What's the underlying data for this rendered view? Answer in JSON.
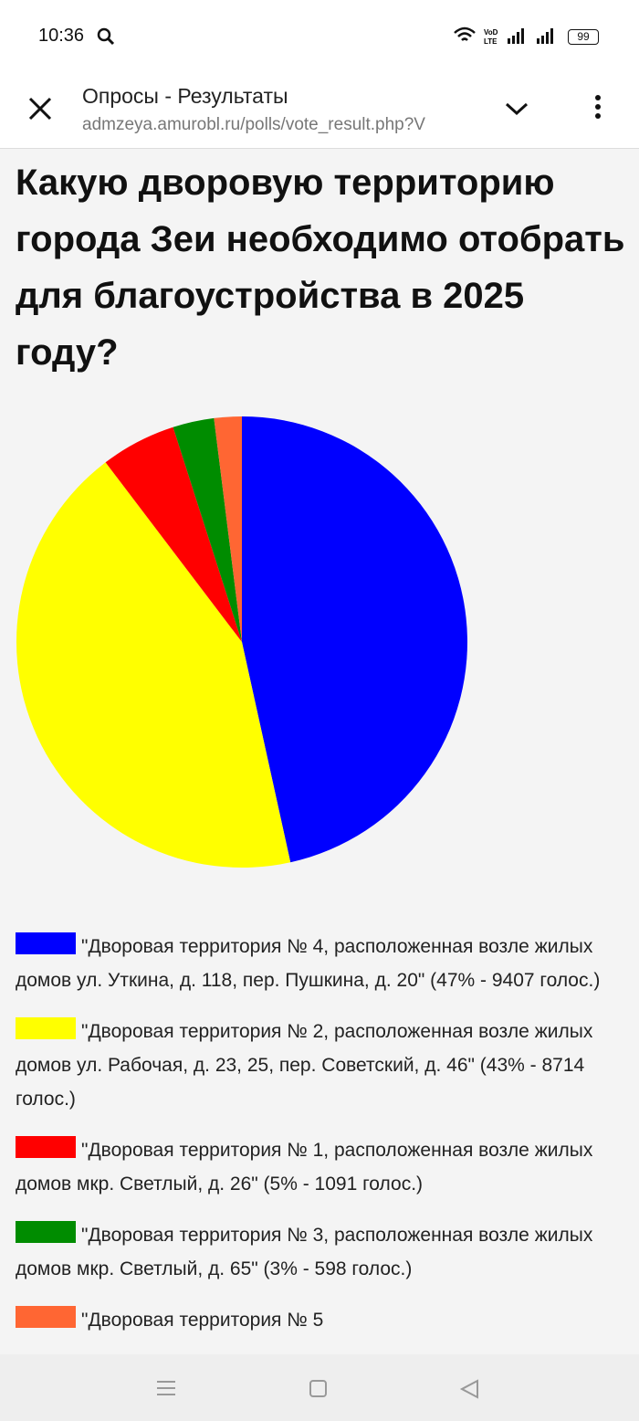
{
  "status_bar": {
    "time": "10:36",
    "battery": "99"
  },
  "browser": {
    "title": "Опросы - Результаты",
    "url": "admzeya.amurobl.ru/polls/vote_result.php?V"
  },
  "chart_data": {
    "type": "pie",
    "title": "Какую дворовую территорию города Зеи необходимо отобрать для благоустройства в 2025 году?",
    "categories": [
      "\"Дворовая территория № 4, расположенная возле жилых домов ул. Уткина, д. 118, пер. Пушкина, д. 20\" (47% - 9407 голос.)",
      "\"Дворовая территория № 2, расположенная возле жилых домов ул. Рабочая, д. 23, 25, пер. Советский, д. 46\" (43% - 8714 голос.)",
      "\"Дворовая территория № 1, расположенная возле жилых домов мкр. Светлый, д. 26\" (5% - 1091 голос.)",
      "\"Дворовая территория № 3, расположенная возле жилых домов мкр. Светлый, д. 65\" (3% - 598 голос.)",
      "\"Дворовая территория № 5"
    ],
    "values": [
      9407,
      8714,
      1091,
      598,
      400
    ],
    "colors": [
      "#0000ff",
      "#ffff00",
      "#ff0000",
      "#008c00",
      "#ff6633"
    ]
  }
}
